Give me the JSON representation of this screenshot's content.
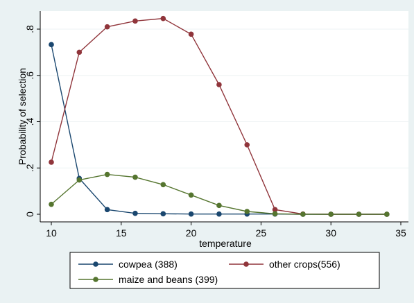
{
  "chart_data": {
    "type": "line",
    "xlabel": "temperature",
    "ylabel": "Probability of selection",
    "xlim": [
      10,
      35
    ],
    "ylim": [
      0,
      0.85
    ],
    "xticks": [
      10,
      15,
      20,
      25,
      30,
      35
    ],
    "xtick_labels": [
      "10",
      "15",
      "20",
      "25",
      "30",
      "35"
    ],
    "yticks": [
      0,
      0.2,
      0.4,
      0.6,
      0.8
    ],
    "ytick_labels": [
      "0",
      ".2",
      ".4",
      ".6",
      ".8"
    ],
    "grid": "horizontal",
    "legend_position": "bottom",
    "x": [
      10,
      12,
      14,
      16,
      18,
      20,
      22,
      24,
      26,
      28,
      30,
      32,
      34
    ],
    "series": [
      {
        "name": "cowpea (388)",
        "color": "#1a476f",
        "values": [
          0.733,
          0.155,
          0.02,
          0.004,
          0.002,
          0.001,
          0.001,
          0.001,
          0.001,
          0.0,
          0.0,
          0.0,
          0.0
        ]
      },
      {
        "name": "other crops(556)",
        "color": "#90353b",
        "values": [
          0.225,
          0.7,
          0.81,
          0.835,
          0.846,
          0.778,
          0.56,
          0.3,
          0.02,
          0.001,
          0.0,
          0.0,
          0.0
        ]
      },
      {
        "name": "maize and beans (399)",
        "color": "#55752f",
        "values": [
          0.043,
          0.148,
          0.172,
          0.16,
          0.128,
          0.083,
          0.038,
          0.012,
          0.002,
          0.0,
          0.0,
          0.0,
          0.0
        ]
      }
    ]
  }
}
